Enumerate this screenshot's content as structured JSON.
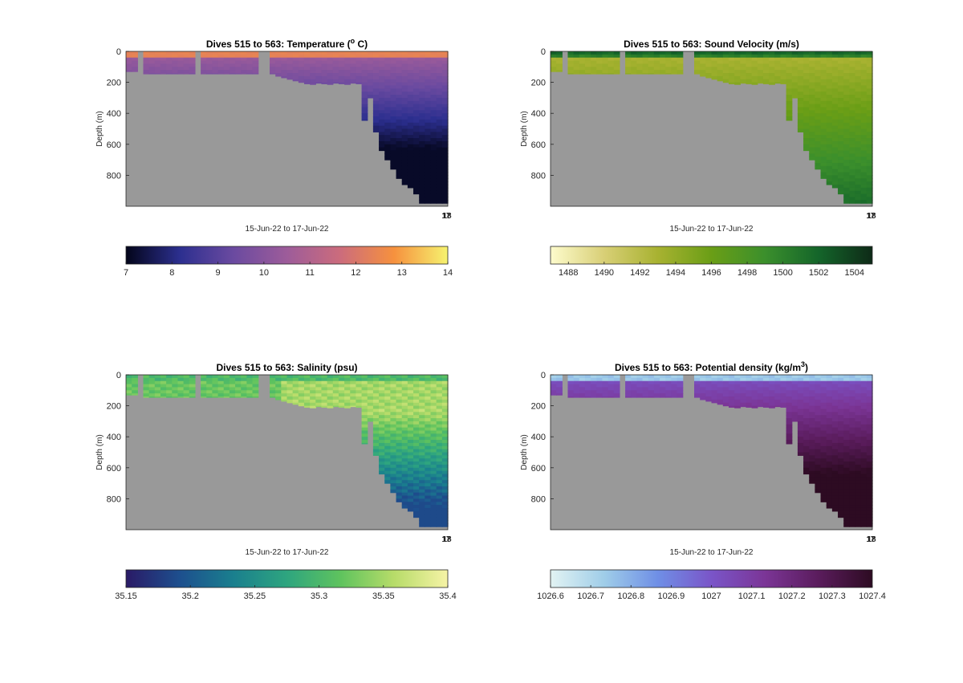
{
  "figure": {
    "shared": {
      "ylabel": "Depth (m)",
      "xlabel": "15-Jun-22 to 17-Jun-22",
      "x_tick_labels": [
        "17",
        "18"
      ],
      "y_ticks": [
        0,
        200,
        400,
        600,
        800
      ],
      "ylim": [
        0,
        1000
      ],
      "y_reversed": true,
      "no_data_color": "#999999"
    },
    "panels": [
      {
        "id": "temperature",
        "title_prefix": "Dives 515 to 563: Temperature (",
        "title_sup": "o",
        "title_suffix": " C)",
        "colormap": [
          "#03051a",
          "#2c2f8f",
          "#6a4aa0",
          "#9d5c9a",
          "#cc6c7c",
          "#f6913e",
          "#f6f36f"
        ],
        "clim": [
          7,
          14
        ],
        "cbar_ticks": [
          "7",
          "8",
          "9",
          "10",
          "11",
          "12",
          "13",
          "14"
        ]
      },
      {
        "id": "sound-velocity",
        "title_prefix": "Dives 515 to 563: Sound Velocity (m/s)",
        "title_sup": "",
        "title_suffix": "",
        "colormap": [
          "#fdfbcc",
          "#d8cf76",
          "#a8b231",
          "#6a9e16",
          "#3b8f2c",
          "#14652a",
          "#0e2a17"
        ],
        "clim": [
          1487,
          1505
        ],
        "cbar_ticks": [
          "1488",
          "1490",
          "1492",
          "1494",
          "1496",
          "1498",
          "1500",
          "1502",
          "1504"
        ]
      },
      {
        "id": "salinity",
        "title_prefix": "Dives 515 to 563: Salinity (psu)",
        "title_sup": "",
        "title_suffix": "",
        "colormap": [
          "#2a1a66",
          "#1d4f8e",
          "#1a7f8e",
          "#2ea57f",
          "#5fc35e",
          "#b7dc69",
          "#f6f3a6"
        ],
        "clim": [
          35.15,
          35.4
        ],
        "cbar_ticks": [
          "35.15",
          "35.2",
          "35.25",
          "35.3",
          "35.35",
          "35.4"
        ]
      },
      {
        "id": "potential-density",
        "title_prefix": "Dives 515 to 563: Potential density (kg/m",
        "title_sup": "3",
        "title_suffix": ")",
        "colormap": [
          "#e2f3f3",
          "#9fcde8",
          "#6f8fe6",
          "#7a55c8",
          "#7b3596",
          "#5a1c5c",
          "#2d0b22"
        ],
        "clim": [
          1026.6,
          1027.4
        ],
        "cbar_ticks": [
          "1026.6",
          "1026.7",
          "1026.8",
          "1026.9",
          "1027",
          "1027.1",
          "1027.2",
          "1027.3",
          "1027.4"
        ]
      }
    ]
  }
}
